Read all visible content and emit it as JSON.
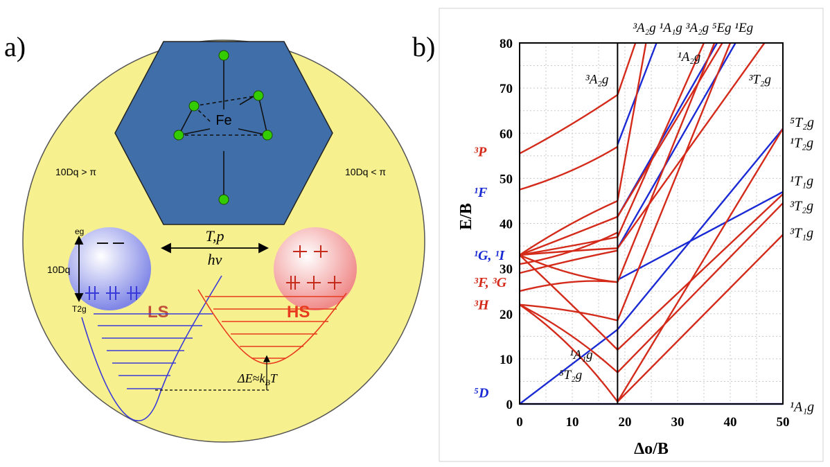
{
  "panel_a": {
    "label": "a)",
    "center_atom": "Fe",
    "cond_left": "10Dq > π",
    "cond_right": "10Dq < π",
    "eg_label": "eg",
    "t2g_label": "T2g",
    "split_label": "10Dq",
    "arrow_top": "T,p",
    "arrow_bottom": "hν",
    "ls_label": "LS",
    "hs_label": "HS",
    "delta_e": "ΔE≈k",
    "delta_e_sub": "B",
    "delta_e_tail": "T",
    "colors": {
      "background": "#f7f08f",
      "hexagon": "#3f6ea8",
      "ligand": "#33cc00",
      "ls": "#3a3ad8",
      "hs": "#e83a1e"
    }
  },
  "panel_b": {
    "label": "b)",
    "xlabel": "Δo/B",
    "ylabel": "E/B",
    "xlim": [
      0,
      50
    ],
    "ylim": [
      0,
      80
    ],
    "xticks": [
      0,
      10,
      20,
      30,
      40,
      50
    ],
    "yticks": [
      0,
      10,
      20,
      30,
      40,
      50,
      60,
      70,
      80
    ],
    "grid": true,
    "crossover": 18.6,
    "top_labels": "³A₂g ¹A₁g ³A₂g ⁵Eg ¹Eg",
    "left_term_labels": [
      {
        "text": "³P",
        "y": 56,
        "color": "#d42a1a"
      },
      {
        "text": "¹F",
        "y": 47,
        "color": "#1a2ad4"
      },
      {
        "text": "¹G, ¹I",
        "y": 33,
        "color": "#1a2ad4"
      },
      {
        "text": "³F, ³G",
        "y": 27,
        "color": "#d42a1a"
      },
      {
        "text": "³H",
        "y": 22,
        "color": "#d42a1a"
      },
      {
        "text": "⁵D",
        "y": 2.5,
        "color": "#1a2ad4"
      }
    ],
    "right_term_labels": [
      {
        "text": "⁵T₂g",
        "y": 62.5
      },
      {
        "text": "¹T₂g",
        "y": 58
      },
      {
        "text": "¹T₁g",
        "y": 49.5
      },
      {
        "text": "³T₂g",
        "y": 44
      },
      {
        "text": "³T₁g",
        "y": 38
      },
      {
        "text": "¹A₁g",
        "y": -0.5
      }
    ],
    "inner_labels": [
      {
        "text": "³A₂g",
        "x": 12.5,
        "y": 71
      },
      {
        "text": "¹A₂g",
        "x": 30.0,
        "y": 76
      },
      {
        "text": "³T₂g",
        "x": 43.5,
        "y": 71
      },
      {
        "text": "¹A₁g",
        "x": 9.5,
        "y": 10
      },
      {
        "text": "⁵T₂g",
        "x": 7.5,
        "y": 5.5
      }
    ]
  },
  "chart_data": {
    "type": "line",
    "xlabel": "Δo/B",
    "ylabel": "E/B",
    "xlim": [
      0,
      50
    ],
    "ylim": [
      0,
      80
    ],
    "series": [
      {
        "color": "#1a2ad4",
        "points": [
          [
            0,
            0
          ],
          [
            18.6,
            16.5
          ]
        ]
      },
      {
        "color": "#1a2ad4",
        "points": [
          [
            0,
            0
          ],
          [
            50,
            0
          ]
        ]
      },
      {
        "color": "#1a2ad4",
        "points": [
          [
            18.6,
            16.5
          ],
          [
            50,
            61
          ]
        ]
      },
      {
        "color": "#1a2ad4",
        "points": [
          [
            18.6,
            27.5
          ],
          [
            50,
            47
          ]
        ]
      },
      {
        "color": "#1a2ad4",
        "points": [
          [
            18.6,
            34.5
          ],
          [
            41,
            80
          ]
        ]
      },
      {
        "color": "#1a2ad4",
        "points": [
          [
            18.6,
            41.5
          ],
          [
            37.5,
            80
          ]
        ]
      },
      {
        "color": "#1a2ad4",
        "points": [
          [
            18.6,
            57.5
          ],
          [
            26,
            80
          ]
        ]
      },
      {
        "color": "#d42a1a",
        "points": [
          [
            0,
            55.5
          ],
          [
            9,
            61
          ],
          [
            18.6,
            68.5
          ]
        ]
      },
      {
        "color": "#d42a1a",
        "points": [
          [
            0,
            47.5
          ],
          [
            10,
            51
          ],
          [
            18.6,
            57
          ]
        ]
      },
      {
        "color": "#d42a1a",
        "points": [
          [
            0,
            33
          ],
          [
            9,
            40
          ],
          [
            18.6,
            45
          ]
        ]
      },
      {
        "color": "#d42a1a",
        "points": [
          [
            0,
            33
          ],
          [
            10,
            37.5
          ],
          [
            18.6,
            41.5
          ]
        ]
      },
      {
        "color": "#d42a1a",
        "points": [
          [
            0,
            33
          ],
          [
            10,
            35
          ],
          [
            18.6,
            37
          ]
        ]
      },
      {
        "color": "#d42a1a",
        "points": [
          [
            0,
            33
          ],
          [
            10,
            34
          ],
          [
            18.6,
            34.5
          ]
        ]
      },
      {
        "color": "#d42a1a",
        "points": [
          [
            0,
            33
          ],
          [
            10,
            28
          ],
          [
            18.6,
            27
          ]
        ]
      },
      {
        "color": "#d42a1a",
        "points": [
          [
            0,
            33
          ],
          [
            10,
            22
          ],
          [
            18.6,
            12
          ]
        ]
      },
      {
        "color": "#d42a1a",
        "points": [
          [
            0,
            22
          ],
          [
            10,
            16
          ],
          [
            18.6,
            7
          ]
        ]
      },
      {
        "color": "#d42a1a",
        "points": [
          [
            0,
            22
          ],
          [
            10,
            14
          ],
          [
            18.6,
            0.5
          ]
        ]
      },
      {
        "color": "#d42a1a",
        "points": [
          [
            0,
            22
          ],
          [
            10,
            21
          ],
          [
            18.6,
            18.5
          ]
        ]
      },
      {
        "color": "#d42a1a",
        "points": [
          [
            0,
            25
          ],
          [
            10,
            28
          ],
          [
            18.6,
            27
          ]
        ]
      },
      {
        "color": "#d42a1a",
        "points": [
          [
            0,
            29
          ],
          [
            10,
            32
          ],
          [
            18.6,
            34
          ]
        ]
      },
      {
        "color": "#d42a1a",
        "points": [
          [
            0,
            31
          ],
          [
            10,
            33
          ],
          [
            18.6,
            38
          ]
        ]
      },
      {
        "color": "#d42a1a",
        "points": [
          [
            18.6,
            0.5
          ],
          [
            50,
            37.5
          ]
        ]
      },
      {
        "color": "#d42a1a",
        "points": [
          [
            18.6,
            7
          ],
          [
            50,
            44.5
          ]
        ]
      },
      {
        "color": "#d42a1a",
        "points": [
          [
            18.6,
            12
          ],
          [
            50,
            46.5
          ]
        ]
      },
      {
        "color": "#d42a1a",
        "points": [
          [
            18.6,
            0.5
          ],
          [
            50,
            61
          ]
        ]
      },
      {
        "color": "#d42a1a",
        "points": [
          [
            18.6,
            18.5
          ],
          [
            40,
            80
          ]
        ]
      },
      {
        "color": "#d42a1a",
        "points": [
          [
            18.6,
            27
          ],
          [
            37,
            80
          ]
        ]
      },
      {
        "color": "#d42a1a",
        "points": [
          [
            18.6,
            37
          ],
          [
            35,
            80
          ]
        ]
      },
      {
        "color": "#d42a1a",
        "points": [
          [
            18.6,
            41.5
          ],
          [
            38.5,
            80
          ]
        ]
      },
      {
        "color": "#d42a1a",
        "points": [
          [
            18.6,
            45
          ],
          [
            24,
            80
          ]
        ]
      },
      {
        "color": "#d42a1a",
        "points": [
          [
            18.6,
            68.5
          ],
          [
            22,
            80
          ]
        ]
      },
      {
        "color": "#d42a1a",
        "points": [
          [
            18.6,
            34.5
          ],
          [
            46.5,
            80
          ]
        ]
      }
    ]
  }
}
